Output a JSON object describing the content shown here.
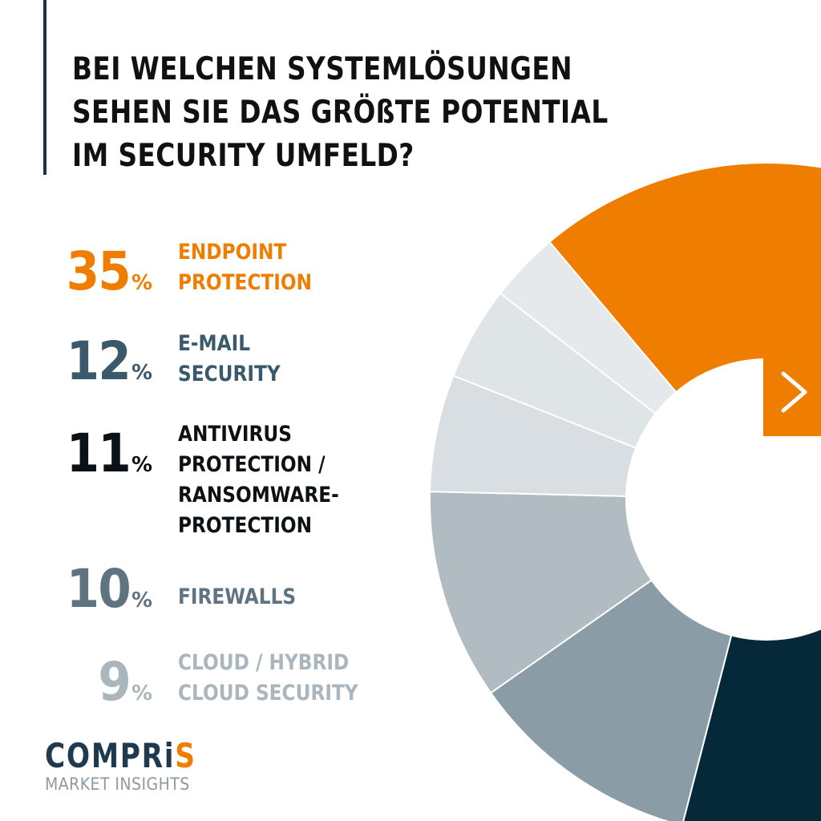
{
  "title": {
    "lines": [
      "BEI WELCHEN SYSTEMLÖSUNGEN",
      "SEHEN SIE DAS GRÖßTE POTENTIAL",
      "IM SECURITY UMFELD?"
    ]
  },
  "legend": [
    {
      "value": "35",
      "unit": "%",
      "lines": [
        "ENDPOINT",
        "PROTECTION"
      ],
      "color": "#ef7d00"
    },
    {
      "value": "12",
      "unit": "%",
      "lines": [
        "E-MAIL",
        "SECURITY"
      ],
      "color": "#3a5a6c"
    },
    {
      "value": "11",
      "unit": "%",
      "lines": [
        "ANTIVIRUS",
        "PROTECTION /",
        "RANSOMWARE-",
        "PROTECTION"
      ],
      "color": "#0b1114"
    },
    {
      "value": "10",
      "unit": "%",
      "lines": [
        "FIREWALLS"
      ],
      "color": "#5e7581"
    },
    {
      "value": "9",
      "unit": "%",
      "lines": [
        "CLOUD / HYBRID",
        "CLOUD SECURITY"
      ],
      "color": "#aab6bd"
    }
  ],
  "chart_data": {
    "type": "pie",
    "style": "donut",
    "title": "BEI WELCHEN SYSTEMLÖSUNGEN SEHEN SIE DAS GRÖßTE POTENTIAL IM SECURITY UMFELD?",
    "unit": "%",
    "categories": [
      "ENDPOINT PROTECTION",
      "E-MAIL SECURITY",
      "ANTIVIRUS PROTECTION / RANSOMWARE-PROTECTION",
      "FIREWALLS",
      "CLOUD / HYBRID CLOUD SECURITY",
      "",
      "",
      ""
    ],
    "values": [
      35,
      12,
      11,
      10,
      9,
      5,
      4,
      3
    ],
    "colors": [
      "#ef7d00",
      "#3d5b6d",
      "#062939",
      "#8a9ca6",
      "#b0bcc2",
      "#d8dee1",
      "#dfe4e7",
      "#e5e9ec"
    ]
  },
  "icons": {
    "arrow": "chevron-right-icon"
  },
  "logo": {
    "main": "COMPRi",
    "accent": "S",
    "sub": "MARKET INSIGHTS"
  }
}
